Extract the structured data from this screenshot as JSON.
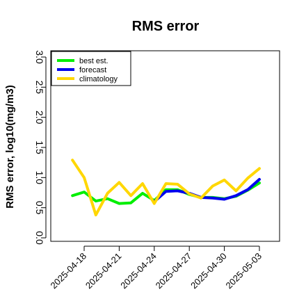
{
  "chart_data": {
    "type": "line",
    "title": "RMS error",
    "ylabel": "RMS error, log10(mg/m3)",
    "xlabel": "",
    "ylim": [
      0.0,
      3.0
    ],
    "yticks": [
      "0.0",
      "0.5",
      "1.0",
      "1.5",
      "2.0",
      "2.5",
      "3.0"
    ],
    "xticks": [
      "2025-04-18",
      "2025-04-21",
      "2025-04-24",
      "2025-04-27",
      "2025-04-30",
      "2025-05-03"
    ],
    "xtick_colors": [
      "#000000",
      "#000000",
      "#228B22",
      "#000000",
      "#000000",
      "#000000"
    ],
    "legend_position": "top-left",
    "grid": false,
    "x": [
      "2025-04-17",
      "2025-04-18",
      "2025-04-19",
      "2025-04-20",
      "2025-04-21",
      "2025-04-22",
      "2025-04-23",
      "2025-04-24",
      "2025-04-25",
      "2025-04-26",
      "2025-04-27",
      "2025-04-28",
      "2025-04-29",
      "2025-04-30",
      "2025-05-01",
      "2025-05-02",
      "2025-05-03"
    ],
    "series": [
      {
        "name": "best est.",
        "color": "#00EE00",
        "values": [
          0.7,
          0.76,
          0.61,
          0.65,
          0.57,
          0.58,
          0.74,
          0.62,
          0.8,
          0.8,
          0.72,
          0.67,
          0.67,
          0.65,
          0.69,
          0.79,
          0.91
        ]
      },
      {
        "name": "forecast",
        "color": "#0000EE",
        "values": [
          null,
          null,
          null,
          null,
          null,
          null,
          null,
          0.6,
          0.77,
          0.78,
          0.74,
          0.67,
          0.66,
          0.64,
          0.7,
          0.8,
          0.97
        ]
      },
      {
        "name": "climatology",
        "color": "#FFD700",
        "values": [
          1.29,
          1.0,
          0.38,
          0.74,
          0.92,
          0.7,
          0.9,
          0.57,
          0.9,
          0.89,
          0.73,
          0.66,
          0.86,
          0.96,
          0.78,
          0.99,
          1.15
        ]
      }
    ]
  }
}
